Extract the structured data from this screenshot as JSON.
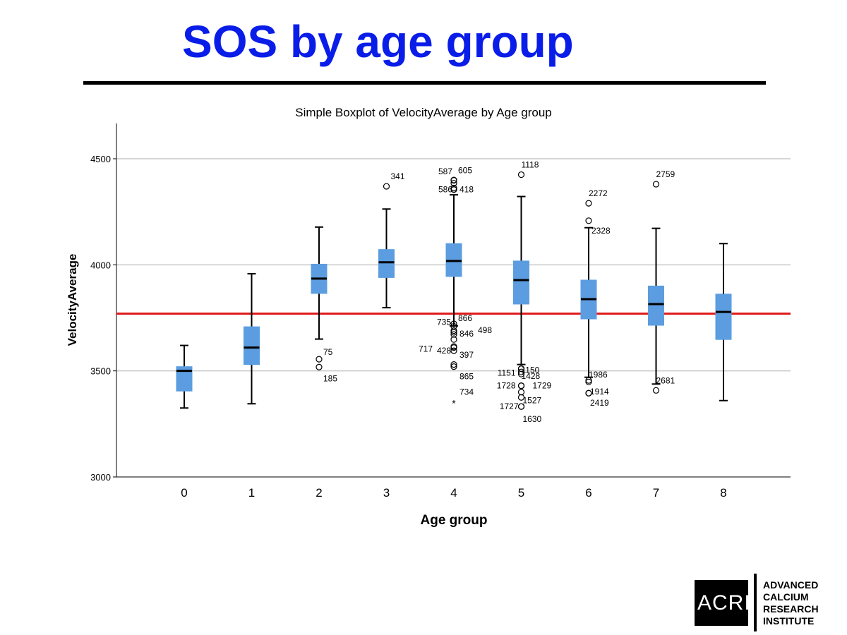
{
  "slide": {
    "title": "SOS by age group",
    "logo": {
      "mark": "ACRI",
      "line1": "ADVANCED",
      "line2": "CALCIUM",
      "line3": "RESEARCH",
      "line4": "INSTITUTE"
    }
  },
  "chart_data": {
    "type": "boxplot",
    "title": "Simple Boxplot of VelocityAverage by Age group",
    "xlabel": "Age group",
    "ylabel": "VelocityAverage",
    "ylim": [
      3000,
      4650
    ],
    "yticks": [
      3000,
      3500,
      4000,
      4500
    ],
    "grid": true,
    "box_color": "#5b9de0",
    "reference_line": {
      "value": 3770,
      "color": "#e01b1b"
    },
    "groups": [
      {
        "category": "0",
        "whisker_low": 3325,
        "q1": 3405,
        "median": 3500,
        "q3": 3520,
        "whisker_high": 3620,
        "outliers": []
      },
      {
        "category": "1",
        "whisker_low": 3345,
        "q1": 3530,
        "median": 3610,
        "q3": 3708,
        "whisker_high": 3958,
        "outliers": []
      },
      {
        "category": "2",
        "whisker_low": 3650,
        "q1": 3865,
        "median": 3935,
        "q3": 4003,
        "whisker_high": 4178,
        "outliers": [
          {
            "value": 3555,
            "label": "75"
          },
          {
            "value": 3518,
            "label": "185"
          }
        ]
      },
      {
        "category": "3",
        "whisker_low": 3798,
        "q1": 3940,
        "median": 4012,
        "q3": 4072,
        "whisker_high": 4263,
        "outliers": [
          {
            "value": 4370,
            "label": "341"
          }
        ]
      },
      {
        "category": "4",
        "whisker_low": 3712,
        "q1": 3945,
        "median": 4018,
        "q3": 4100,
        "whisker_high": 4330,
        "outliers": [
          {
            "value": 4400,
            "label": "587"
          },
          {
            "value": 4398,
            "label": "605"
          },
          {
            "value": 4385,
            "label": ""
          },
          {
            "value": 4362,
            "label": ""
          },
          {
            "value": 4355,
            "label": "586"
          },
          {
            "value": 4355,
            "label": "418"
          },
          {
            "value": 3722,
            "label": "866"
          },
          {
            "value": 3710,
            "label": "735"
          },
          {
            "value": 3690,
            "label": ""
          },
          {
            "value": 3682,
            "label": "846"
          },
          {
            "value": 3672,
            "label": "498"
          },
          {
            "value": 3648,
            "label": ""
          },
          {
            "value": 3615,
            "label": "428"
          },
          {
            "value": 3610,
            "label": "717"
          },
          {
            "value": 3595,
            "label": "397"
          },
          {
            "value": 3530,
            "label": ""
          },
          {
            "value": 3520,
            "label": "865"
          },
          {
            "value": 3355,
            "label": "734",
            "extreme": true
          }
        ]
      },
      {
        "category": "5",
        "whisker_low": 3530,
        "q1": 3815,
        "median": 3928,
        "q3": 4018,
        "whisker_high": 4322,
        "outliers": [
          {
            "value": 4425,
            "label": "1118"
          },
          {
            "value": 3510,
            "label": "1151"
          },
          {
            "value": 3510,
            "label": "1150"
          },
          {
            "value": 3495,
            "label": "1428"
          },
          {
            "value": 3485,
            "label": ""
          },
          {
            "value": 3430,
            "label": "1728"
          },
          {
            "value": 3430,
            "label": "1729"
          },
          {
            "value": 3400,
            "label": ""
          },
          {
            "value": 3375,
            "label": "1527"
          },
          {
            "value": 3332,
            "label": "1727"
          },
          {
            "value": 3332,
            "label": "1630"
          }
        ]
      },
      {
        "category": "6",
        "whisker_low": 3470,
        "q1": 3745,
        "median": 3838,
        "q3": 3928,
        "whisker_high": 4175,
        "outliers": [
          {
            "value": 4290,
            "label": "2272"
          },
          {
            "value": 4208,
            "label": "2328"
          },
          {
            "value": 3455,
            "label": "1986"
          },
          {
            "value": 3448,
            "label": ""
          },
          {
            "value": 3395,
            "label": "1914"
          },
          {
            "value": 3395,
            "label": "2419"
          }
        ]
      },
      {
        "category": "7",
        "whisker_low": 3438,
        "q1": 3715,
        "median": 3815,
        "q3": 3900,
        "whisker_high": 4172,
        "outliers": [
          {
            "value": 4380,
            "label": "2759"
          },
          {
            "value": 3408,
            "label": "2681"
          }
        ]
      },
      {
        "category": "8",
        "whisker_low": 3360,
        "q1": 3648,
        "median": 3778,
        "q3": 3862,
        "whisker_high": 4100,
        "outliers": []
      }
    ]
  }
}
